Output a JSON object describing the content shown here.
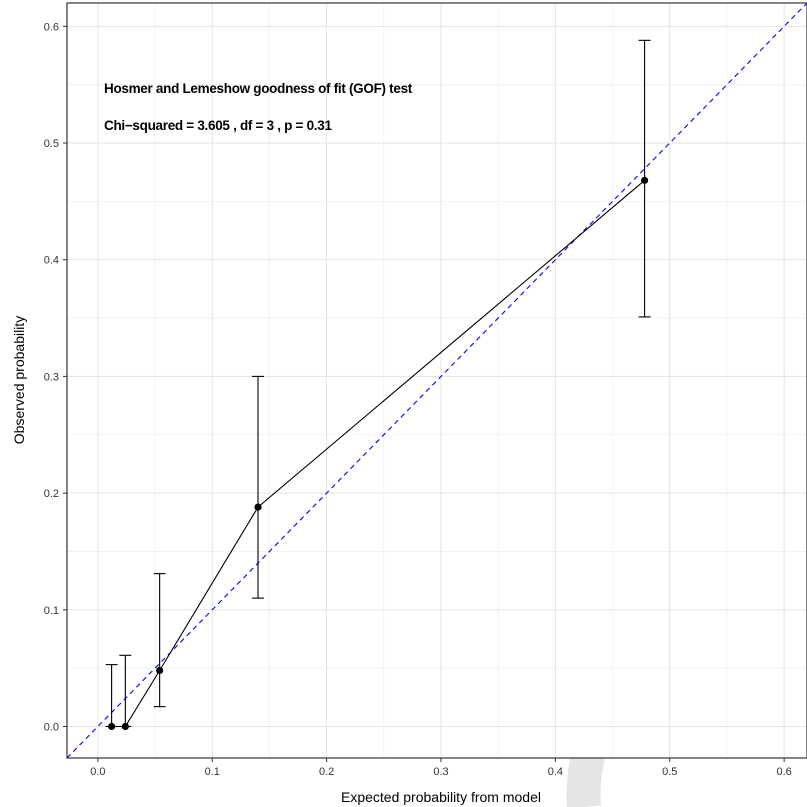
{
  "chart_data": {
    "type": "line",
    "title": "",
    "xlabel": "Expected probability from model",
    "ylabel": "Observed probability",
    "xlim": [
      -0.027,
      0.62
    ],
    "ylim": [
      -0.027,
      0.62
    ],
    "x_ticks": [
      0.0,
      0.1,
      0.2,
      0.3,
      0.4,
      0.5,
      0.6
    ],
    "x_tick_labels": [
      "0.0",
      "0.1",
      "0.2",
      "0.3",
      "0.4",
      "0.5",
      "0.6"
    ],
    "y_ticks": [
      0.0,
      0.1,
      0.2,
      0.3,
      0.4,
      0.5,
      0.6
    ],
    "y_tick_labels": [
      "0.0",
      "0.1",
      "0.2",
      "0.3",
      "0.4",
      "0.5",
      "0.6"
    ],
    "grid": true,
    "annotations": [
      "Hosmer and Lemeshow goodness of fit (GOF) test",
      "Chi−squared = 3.605 , df = 3 , p = 0.31"
    ],
    "series": [
      {
        "style": "solid",
        "color": "#000000",
        "points": [
          {
            "x": 0.012,
            "y": 0.0,
            "lower": 0.0,
            "upper": 0.053
          },
          {
            "x": 0.024,
            "y": 0.0,
            "lower": 0.0,
            "upper": 0.061
          },
          {
            "x": 0.054,
            "y": 0.048,
            "lower": 0.017,
            "upper": 0.131
          },
          {
            "x": 0.14,
            "y": 0.188,
            "lower": 0.11,
            "upper": 0.3
          },
          {
            "x": 0.478,
            "y": 0.468,
            "lower": 0.351,
            "upper": 0.588
          }
        ]
      }
    ],
    "reference_line": {
      "style": "dashed",
      "color": "#0000ff",
      "slope": 1,
      "intercept": 0
    }
  },
  "watermark_color": "#e5e5e5"
}
